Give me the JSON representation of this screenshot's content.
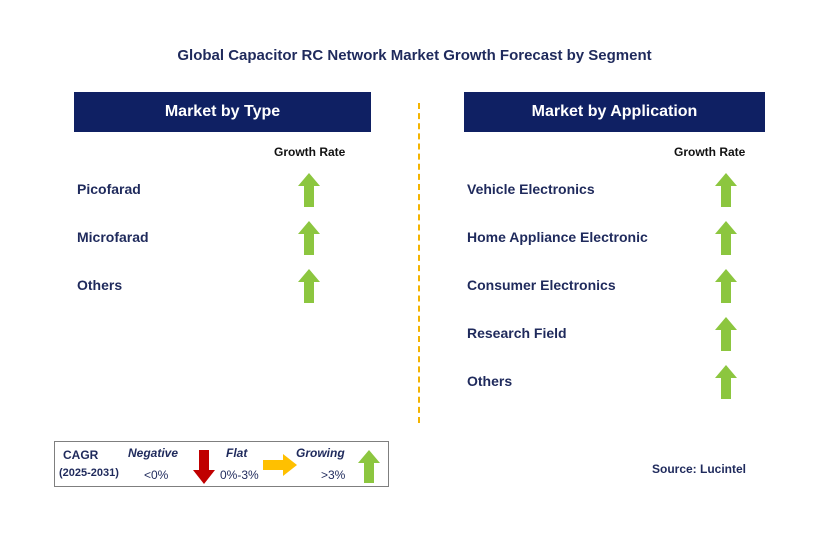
{
  "chart_data": {
    "type": "table",
    "title": "Global Capacitor RC Network Market Growth Forecast by Segment",
    "panels": [
      {
        "header": "Market by Type",
        "column_label": "Growth Rate",
        "segments": [
          {
            "name": "Picofarad",
            "trend": "growing"
          },
          {
            "name": "Microfarad",
            "trend": "growing"
          },
          {
            "name": "Others",
            "trend": "growing"
          }
        ]
      },
      {
        "header": "Market by Application",
        "column_label": "Growth Rate",
        "segments": [
          {
            "name": "Vehicle Electronics",
            "trend": "growing"
          },
          {
            "name": "Home Appliance Electronic",
            "trend": "growing"
          },
          {
            "name": "Consumer Electronics",
            "trend": "growing"
          },
          {
            "name": "Research Field",
            "trend": "growing"
          },
          {
            "name": "Others",
            "trend": "growing"
          }
        ]
      }
    ],
    "legend": {
      "cagr_label": "CAGR",
      "period": "(2025-2031)",
      "negative_label": "Negative",
      "negative_range": "<0%",
      "flat_label": "Flat",
      "flat_range": "0%-3%",
      "growing_label": "Growing",
      "growing_range": ">3%"
    },
    "source": "Source: Lucintel"
  },
  "colors": {
    "header_bg": "#0f2063",
    "growing_arrow": "#8cc63f",
    "negative_arrow": "#c00000",
    "flat_arrow": "#ffc000",
    "divider": "#f4b400"
  },
  "icons": {
    "growing": "green-up-arrow-icon",
    "negative": "red-down-arrow-icon",
    "flat": "yellow-right-arrow-icon"
  }
}
